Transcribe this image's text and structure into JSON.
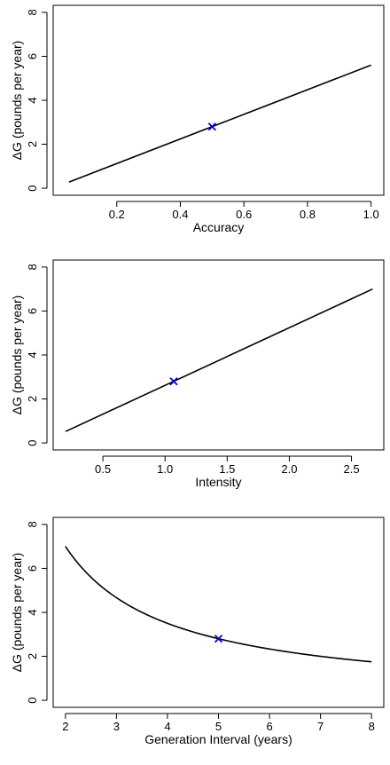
{
  "chart_data": [
    {
      "type": "line",
      "xlabel": "Accuracy",
      "ylabel": "ΔG (pounds per year)",
      "xlim": [
        0.0,
        1.04
      ],
      "ylim": [
        -0.32,
        8.32
      ],
      "xticks": [
        0.2,
        0.4,
        0.6,
        0.8,
        1.0
      ],
      "xtick_labels": [
        "0.2",
        "0.4",
        "0.6",
        "0.8",
        "1.0"
      ],
      "yticks": [
        0,
        2,
        4,
        6,
        8
      ],
      "ytick_labels": [
        "0",
        "2",
        "4",
        "6",
        "8"
      ],
      "grid": false,
      "series": [
        {
          "x": [
            0.05,
            1.0
          ],
          "y": [
            0.28,
            5.6
          ]
        }
      ],
      "highlight_point": {
        "x": 0.5,
        "y": 2.8,
        "marker": "x",
        "color": "#0000cc"
      }
    },
    {
      "type": "line",
      "xlabel": "Intensity",
      "ylabel": "ΔG (pounds per year)",
      "xlim": [
        0.1,
        2.76
      ],
      "ylim": [
        -0.32,
        8.32
      ],
      "xticks": [
        0.5,
        1.0,
        1.5,
        2.0,
        2.5
      ],
      "xtick_labels": [
        "0.5",
        "1.0",
        "1.5",
        "2.0",
        "2.5"
      ],
      "yticks": [
        0,
        2,
        4,
        6,
        8
      ],
      "ytick_labels": [
        "0",
        "2",
        "4",
        "6",
        "8"
      ],
      "grid": false,
      "series": [
        {
          "x": [
            0.2,
            2.67
          ],
          "y": [
            0.52,
            7.0
          ]
        }
      ],
      "highlight_point": {
        "x": 1.07,
        "y": 2.8,
        "marker": "x",
        "color": "#0000cc"
      }
    },
    {
      "type": "line",
      "xlabel": "Generation Interval (years)",
      "ylabel": "ΔG (pounds per year)",
      "xlim": [
        1.76,
        8.24
      ],
      "ylim": [
        -0.32,
        8.32
      ],
      "xticks": [
        2,
        3,
        4,
        5,
        6,
        7,
        8
      ],
      "xtick_labels": [
        "2",
        "3",
        "4",
        "5",
        "6",
        "7",
        "8"
      ],
      "yticks": [
        0,
        2,
        4,
        6,
        8
      ],
      "ytick_labels": [
        "0",
        "2",
        "4",
        "6",
        "8"
      ],
      "grid": false,
      "series": [
        {
          "x": [
            2.0,
            2.5,
            3.0,
            3.5,
            4.0,
            4.5,
            5.0,
            5.5,
            6.0,
            6.5,
            7.0,
            7.5,
            8.0
          ],
          "y": [
            7.0,
            5.6,
            4.67,
            4.0,
            3.5,
            3.11,
            2.8,
            2.55,
            2.33,
            2.15,
            2.0,
            1.87,
            1.75
          ]
        }
      ],
      "highlight_point": {
        "x": 5.0,
        "y": 2.8,
        "marker": "x",
        "color": "#0000cc"
      }
    }
  ]
}
